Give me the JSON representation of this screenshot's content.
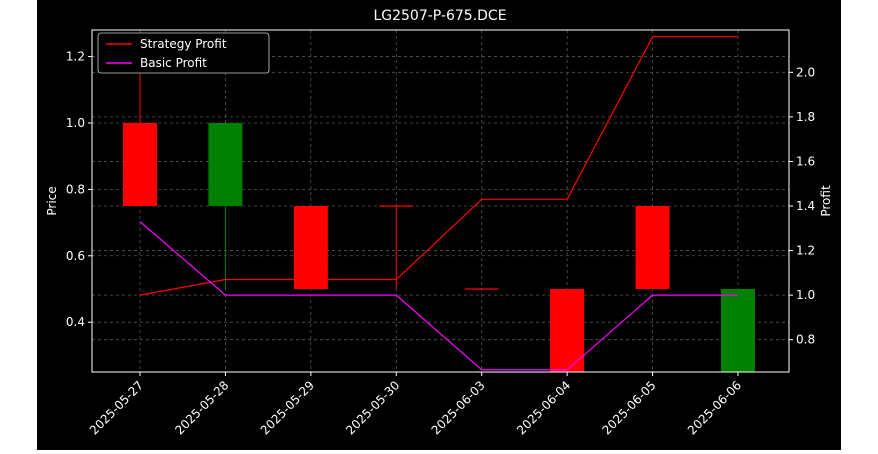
{
  "chart_data": {
    "type": "candlestick",
    "title": "LG2507-P-675.DCE",
    "xlabel": "",
    "ylabel_left": "Price",
    "ylabel_right": "Profit",
    "categories": [
      "2025-05-27",
      "2025-05-28",
      "2025-05-29",
      "2025-05-30",
      "2025-06-03",
      "2025-06-04",
      "2025-06-05",
      "2025-06-06"
    ],
    "ylim_left": [
      0.25,
      1.28
    ],
    "yticks_left": [
      "0.4",
      "0.6",
      "0.8",
      "1.0",
      "1.2"
    ],
    "ylim_right": [
      0.655,
      2.19
    ],
    "yticks_right": [
      "0.8",
      "1.0",
      "1.2",
      "1.4",
      "1.6",
      "1.8",
      "2.0"
    ],
    "grid": true,
    "legend_position": "top-left",
    "candles": [
      {
        "date": "2025-05-27",
        "open": 1.0,
        "high": 1.2,
        "low": 0.75,
        "close": 0.75,
        "color": "#ff0000"
      },
      {
        "date": "2025-05-28",
        "open": 0.75,
        "high": 1.0,
        "low": 0.5,
        "close": 1.0,
        "color": "#008000"
      },
      {
        "date": "2025-05-29",
        "open": 0.75,
        "high": 0.75,
        "low": 0.5,
        "close": 0.5,
        "color": "#ff0000"
      },
      {
        "date": "2025-05-30",
        "open": 0.75,
        "high": 0.75,
        "low": 0.5,
        "close": 0.75,
        "color": "#ff0000"
      },
      {
        "date": "2025-06-03",
        "open": 0.5,
        "high": 0.5,
        "low": 0.5,
        "close": 0.5,
        "color": "#ff0000"
      },
      {
        "date": "2025-06-04",
        "open": 0.5,
        "high": 0.5,
        "low": 0.25,
        "close": 0.25,
        "color": "#ff0000"
      },
      {
        "date": "2025-06-05",
        "open": 0.75,
        "high": 0.75,
        "low": 0.5,
        "close": 0.5,
        "color": "#ff0000"
      },
      {
        "date": "2025-06-06",
        "open": 0.25,
        "high": 0.5,
        "low": 0.25,
        "close": 0.5,
        "color": "#008000"
      }
    ],
    "series": [
      {
        "name": "Strategy Profit",
        "color": "#ff0000",
        "values": [
          1.0,
          1.07,
          1.07,
          1.07,
          1.43,
          1.43,
          2.16,
          2.16
        ]
      },
      {
        "name": "Basic Profit",
        "color": "#ff00ff",
        "values": [
          1.33,
          1.0,
          1.0,
          1.0,
          0.665,
          0.665,
          1.0,
          1.0
        ]
      }
    ]
  }
}
